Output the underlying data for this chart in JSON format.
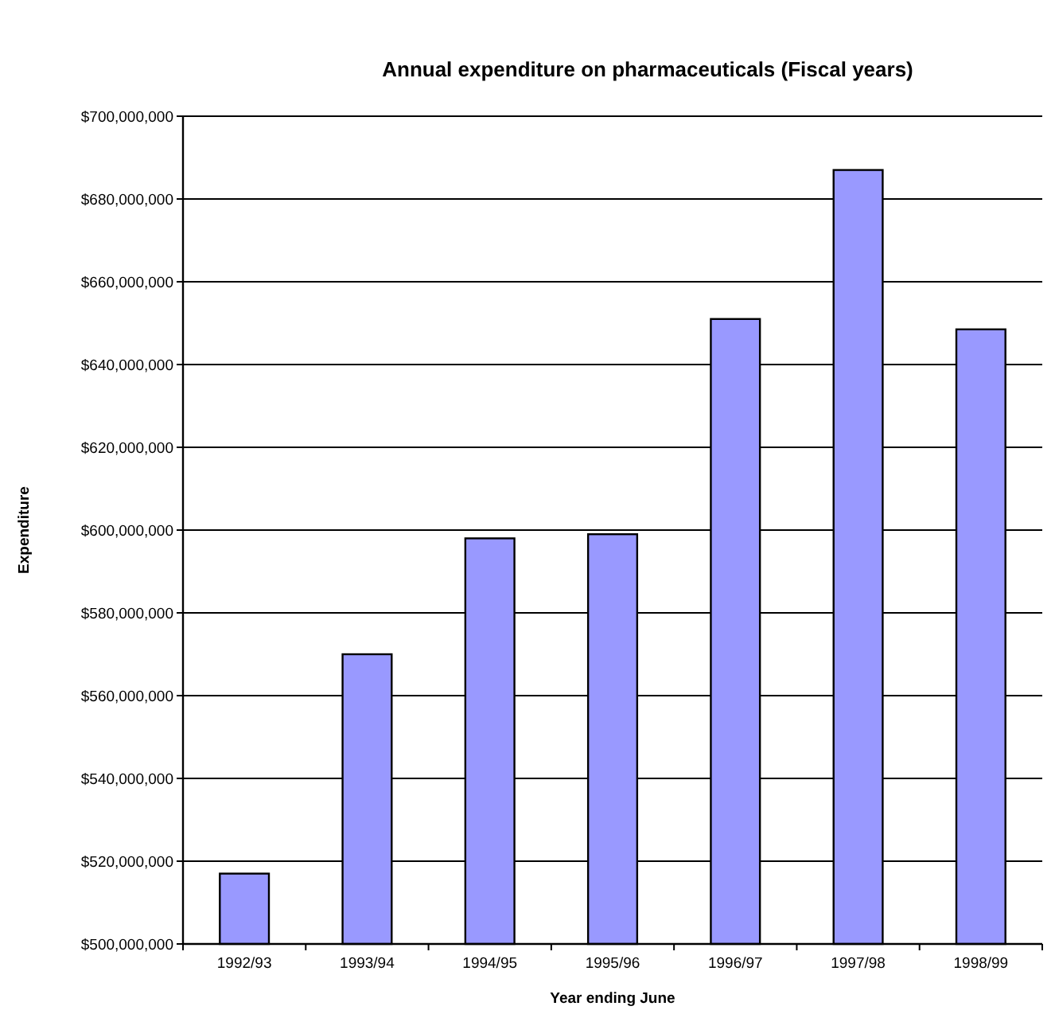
{
  "chart_data": {
    "type": "bar",
    "title": "Annual expenditure on pharmaceuticals (Fiscal years)",
    "xlabel": "Year ending June",
    "ylabel": "Expenditure",
    "categories": [
      "1992/93",
      "1993/94",
      "1994/95",
      "1995/96",
      "1996/97",
      "1997/98",
      "1998/99"
    ],
    "values": [
      517000000,
      570000000,
      598000000,
      599000000,
      651000000,
      687000000,
      648500000
    ],
    "color": "#9999ff",
    "ylim": [
      500000000,
      700000000
    ],
    "yticks": [
      {
        "value": 500000000,
        "label": "$500,000,000"
      },
      {
        "value": 520000000,
        "label": "$520,000,000"
      },
      {
        "value": 540000000,
        "label": "$540,000,000"
      },
      {
        "value": 560000000,
        "label": "$560,000,000"
      },
      {
        "value": 580000000,
        "label": "$580,000,000"
      },
      {
        "value": 600000000,
        "label": "$600,000,000"
      },
      {
        "value": 620000000,
        "label": "$620,000,000"
      },
      {
        "value": 640000000,
        "label": "$640,000,000"
      },
      {
        "value": 660000000,
        "label": "$660,000,000"
      },
      {
        "value": 680000000,
        "label": "$680,000,000"
      },
      {
        "value": 700000000,
        "label": "$700,000,000"
      }
    ],
    "grid": "y"
  }
}
